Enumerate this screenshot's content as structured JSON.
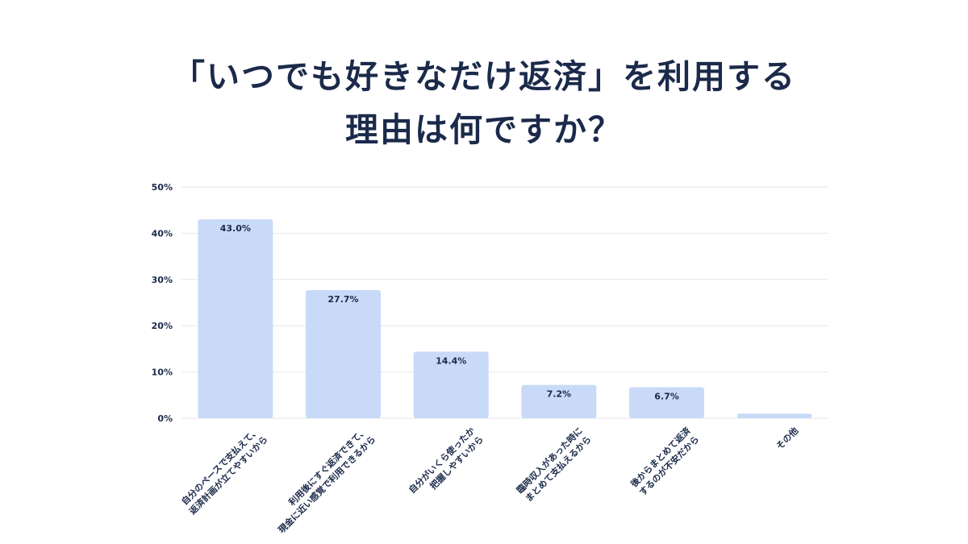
{
  "title": {
    "line1": "「いつでも好きなだけ返済」を利用する",
    "line2": "理由は何ですか？"
  },
  "colors": {
    "bar": "#c9daf8",
    "text": "#1b2a4a",
    "grid": "#e6e6e6"
  },
  "chart_data": {
    "type": "bar",
    "title": "「いつでも好きなだけ返済」を利用する理由は何ですか？",
    "categories": [
      [
        "自分のペースで支払えて、",
        "返済計画が立てやすいから"
      ],
      [
        "利用後にすぐ返済できて、",
        "現金に近い感覚で利用できるから"
      ],
      [
        "自分がいくら使ったか",
        "把握しやすいから"
      ],
      [
        "臨時収入があった時に",
        "まとめて支払えるから"
      ],
      [
        "後からまとめて返済",
        "するのが不安だから"
      ],
      [
        "その他"
      ]
    ],
    "values": [
      43.0,
      27.7,
      14.4,
      7.2,
      6.7,
      1.0
    ],
    "data_labels": [
      "43.0%",
      "27.7%",
      "14.4%",
      "7.2%",
      "6.7%",
      ""
    ],
    "yticks": [
      "0%",
      "10%",
      "20%",
      "30%",
      "40%",
      "50%"
    ],
    "ylim": [
      0,
      50
    ],
    "grid": true,
    "xlabel": "",
    "ylabel": ""
  }
}
